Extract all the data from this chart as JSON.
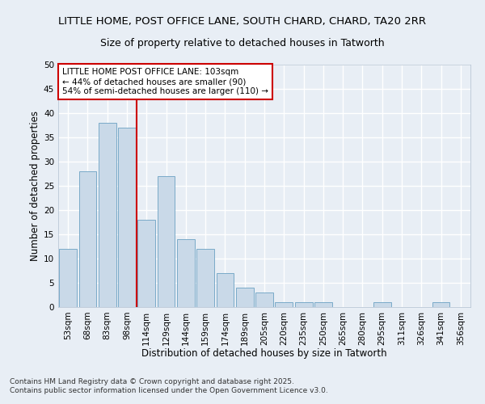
{
  "title_line1": "LITTLE HOME, POST OFFICE LANE, SOUTH CHARD, CHARD, TA20 2RR",
  "title_line2": "Size of property relative to detached houses in Tatworth",
  "xlabel": "Distribution of detached houses by size in Tatworth",
  "ylabel": "Number of detached properties",
  "bar_color": "#c9d9e8",
  "bar_edge_color": "#7aaac8",
  "categories": [
    "53sqm",
    "68sqm",
    "83sqm",
    "98sqm",
    "114sqm",
    "129sqm",
    "144sqm",
    "159sqm",
    "174sqm",
    "189sqm",
    "205sqm",
    "220sqm",
    "235sqm",
    "250sqm",
    "265sqm",
    "280sqm",
    "295sqm",
    "311sqm",
    "326sqm",
    "341sqm",
    "356sqm"
  ],
  "values": [
    12,
    28,
    38,
    37,
    18,
    27,
    14,
    12,
    7,
    4,
    3,
    1,
    1,
    1,
    0,
    0,
    1,
    0,
    0,
    1,
    0
  ],
  "ylim": [
    0,
    50
  ],
  "yticks": [
    0,
    5,
    10,
    15,
    20,
    25,
    30,
    35,
    40,
    45,
    50
  ],
  "vline_x": 3.5,
  "vline_color": "#cc0000",
  "annotation_text": "LITTLE HOME POST OFFICE LANE: 103sqm\n← 44% of detached houses are smaller (90)\n54% of semi-detached houses are larger (110) →",
  "annotation_box_color": "#ffffff",
  "annotation_box_edge": "#cc0000",
  "background_color": "#e8eef5",
  "grid_color": "#ffffff",
  "footer_line1": "Contains HM Land Registry data © Crown copyright and database right 2025.",
  "footer_line2": "Contains public sector information licensed under the Open Government Licence v3.0.",
  "title1_fontsize": 9.5,
  "title2_fontsize": 9,
  "axis_label_fontsize": 8.5,
  "tick_fontsize": 7.5,
  "annotation_fontsize": 7.5,
  "footer_fontsize": 6.5
}
